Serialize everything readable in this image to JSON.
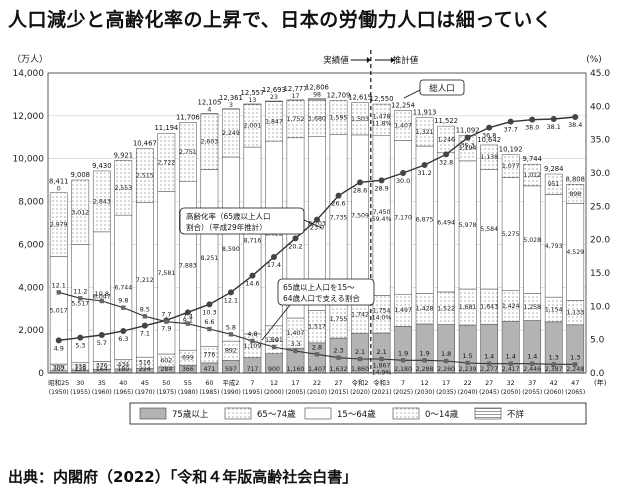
{
  "title": "人口減少と高齢化率の上昇で、日本の労働力人口は細っていく",
  "source": "出典：内閣府（2022）「令和４年版高齢社会白書」",
  "chart_data": {
    "type": "bar",
    "left_unit": "（万人）",
    "right_unit": "(%)",
    "x_unit": "(年)",
    "ylim_left": [
      0,
      14000
    ],
    "ylim_right": [
      0,
      45.0
    ],
    "left_ticks": [
      "0",
      "2,000",
      "4,000",
      "6,000",
      "8,000",
      "10,000",
      "12,000",
      "14,000"
    ],
    "right_ticks": [
      "0.0",
      "5.0",
      "10.0",
      "15.0",
      "20.0",
      "25.0",
      "30.0",
      "35.0",
      "40.0",
      "45.0"
    ],
    "categories": [
      {
        "era": "昭和25",
        "year": "(1950)"
      },
      {
        "era": "30",
        "year": "(1955)"
      },
      {
        "era": "35",
        "year": "(1960)"
      },
      {
        "era": "40",
        "year": "(1965)"
      },
      {
        "era": "45",
        "year": "(1970)"
      },
      {
        "era": "50",
        "year": "(1975)"
      },
      {
        "era": "55",
        "year": "(1980)"
      },
      {
        "era": "60",
        "year": "(1985)"
      },
      {
        "era": "平成2",
        "year": "(1990)"
      },
      {
        "era": "7",
        "year": "(1995)"
      },
      {
        "era": "12",
        "year": "(2000)"
      },
      {
        "era": "17",
        "year": "(2005)"
      },
      {
        "era": "22",
        "year": "(2010)"
      },
      {
        "era": "27",
        "year": "(2015)"
      },
      {
        "era": "令和2",
        "year": "(2020)"
      },
      {
        "era": "令和3",
        "year": "(2021)"
      },
      {
        "era": "7",
        "year": "(2025)"
      },
      {
        "era": "12",
        "year": "(2030)"
      },
      {
        "era": "17",
        "year": "(2035)"
      },
      {
        "era": "22",
        "year": "(2040)"
      },
      {
        "era": "27",
        "year": "(2045)"
      },
      {
        "era": "32",
        "year": "(2050)"
      },
      {
        "era": "37",
        "year": "(2055)"
      },
      {
        "era": "42",
        "year": "(2060)"
      },
      {
        "era": "47",
        "year": "(2065)"
      }
    ],
    "totals": [
      "8,411",
      "9,008",
      "9,430",
      "9,921",
      "10,467",
      "11,194",
      "11,706",
      "12,105",
      "12,361",
      "12,557",
      "12,693",
      "12,777",
      "12,806",
      "12,709",
      "12,615",
      "12,550",
      "12,254",
      "11,913",
      "11,522",
      "11,092",
      "10,642",
      "10,192",
      "9,744",
      "9,284",
      "8,808"
    ],
    "series": [
      {
        "name": "75歳以上",
        "values": [
          107,
          139,
          164,
          189,
          224,
          284,
          366,
          471,
          597,
          717,
          900,
          1160,
          1407,
          1632,
          1860,
          1867,
          2180,
          2288,
          2260,
          2239,
          2277,
          2417,
          2446,
          2387,
          2248
        ],
        "labels": [
          "107",
          "139",
          "164",
          "189",
          "224",
          "284",
          "366",
          "471",
          "597",
          "717",
          "900",
          "1,160",
          "1,407",
          "1,632",
          "1,860",
          "1,867\n14.9%",
          "2,180",
          "2,288",
          "2,260",
          "2,239",
          "2,277",
          "2,417",
          "2,446",
          "2,387",
          "2,248"
        ]
      },
      {
        "name": "65～74歳",
        "values": [
          309,
          338,
          376,
          434,
          516,
          602,
          699,
          776,
          892,
          1109,
          1301,
          1407,
          1517,
          1755,
          1742,
          1754,
          1497,
          1428,
          1522,
          1681,
          1643,
          1424,
          1258,
          1154,
          1133
        ],
        "labels": [
          "309",
          "338",
          "376",
          "434",
          "516",
          "602",
          "699",
          "776",
          "892",
          "1,109",
          "1,301",
          "1,407",
          "1,517",
          "1,755",
          "1,742",
          "1,754\n14.0%",
          "1,497",
          "1,428",
          "1,522",
          "1,681",
          "1,643",
          "1,424",
          "1,258",
          "1,154",
          "1,133"
        ]
      },
      {
        "name": "15～64歳",
        "values": [
          5017,
          5517,
          6047,
          6744,
          7212,
          7581,
          7883,
          8251,
          8590,
          8716,
          8622,
          8409,
          8103,
          7735,
          7509,
          7450,
          7170,
          6875,
          6494,
          5978,
          5584,
          5275,
          5028,
          4793,
          4529
        ],
        "labels": [
          "5,017",
          "5,517",
          "6,047",
          "6,744",
          "7,212",
          "7,581",
          "7,883",
          "8,251",
          "8,590",
          "8,716",
          "8,622",
          "8,409",
          "8,103",
          "7,735",
          "7,509",
          "7,450\n59.4%",
          "7,170",
          "6,875",
          "6,494",
          "5,978",
          "5,584",
          "5,275",
          "5,028",
          "4,793",
          "4,529"
        ]
      },
      {
        "name": "0～14歳",
        "values": [
          2979,
          3012,
          2843,
          2553,
          2515,
          2722,
          2751,
          2603,
          2249,
          2001,
          1847,
          1752,
          1680,
          1595,
          1503,
          1478,
          1407,
          1321,
          1246,
          1194,
          1138,
          1077,
          1012,
          951,
          898
        ],
        "labels": [
          "2,979",
          "3,012",
          "2,843",
          "2,553",
          "2,515",
          "2,722",
          "2,751",
          "2,603",
          "2,249",
          "2,001",
          "1,847",
          "1,752",
          "1,680",
          "1,595",
          "1,503",
          "1,478\n11.8%",
          "1,407",
          "1,321",
          "1,246",
          "1,194",
          "1,138",
          "1,077",
          "1,012",
          "951",
          "898"
        ]
      },
      {
        "name": "不詳",
        "values": [
          0,
          0,
          0,
          0,
          0,
          0,
          0,
          4,
          3,
          13,
          23,
          17,
          98,
          0,
          0,
          0,
          0,
          0,
          0,
          0,
          0,
          0,
          0,
          0,
          0
        ],
        "labels": [
          "0",
          "",
          "",
          "",
          "",
          "",
          "",
          "4",
          "3",
          "13",
          "23",
          "17",
          "98",
          "",
          "",
          "",
          "",
          "",
          "",
          "",
          "",
          "",
          "",
          "",
          ""
        ]
      }
    ],
    "lines": [
      {
        "name": "高齢化率（65歳以上人口割合）（平成29年推計）",
        "values": [
          4.9,
          5.3,
          5.7,
          6.3,
          7.1,
          7.9,
          9.1,
          10.3,
          12.1,
          14.6,
          17.4,
          20.2,
          23.0,
          26.6,
          28.6,
          28.9,
          30.0,
          31.2,
          32.8,
          35.3,
          36.8,
          37.7,
          38.0,
          38.1,
          38.4
        ]
      },
      {
        "name": "65歳以上人口を15～64歳人口で支える割合",
        "values": [
          12.1,
          11.2,
          10.8,
          9.8,
          8.5,
          7.7,
          7.4,
          6.6,
          5.8,
          4.8,
          3.9,
          3.3,
          2.8,
          2.3,
          2.1,
          2.1,
          1.9,
          1.9,
          1.8,
          1.5,
          1.4,
          1.4,
          1.4,
          1.3,
          1.3
        ]
      }
    ],
    "rate_labels": [
      "4.9",
      "5.3",
      "5.7",
      "6.3",
      "7.1",
      "7.9",
      "9.1",
      "10.3",
      "12.1",
      "14.6",
      "17.4",
      "20.2",
      "23.0",
      "26.6",
      "28.6",
      "28.9",
      "30.0",
      "31.2",
      "32.8",
      "35.3",
      "36.8",
      "37.7",
      "38.0",
      "38.1",
      "38.4"
    ],
    "support_labels": [
      "12.1",
      "11.2",
      "10.8",
      "9.8",
      "8.5",
      "7.7",
      "7.4",
      "6.6",
      "5.8",
      "4.8",
      "3.9",
      "3.3",
      "2.8",
      "2.3",
      "2.1",
      "2.1",
      "1.9",
      "1.9",
      "1.8",
      "1.5",
      "1.4",
      "1.4",
      "1.4",
      "1.3",
      "1.3"
    ],
    "annotations": {
      "actual": "実績値",
      "projected": "推計値",
      "total": "総人口",
      "rate_note": "高齢化率（65歳以上人口割合）（平成29年推計）",
      "support_note": "65歳以上人口を15～64歳人口で支える割合"
    },
    "legend": [
      "75歳以上",
      "65～74歳",
      "15～64歳",
      "0～14歳",
      "不詳"
    ],
    "legend_position": "bottom"
  }
}
